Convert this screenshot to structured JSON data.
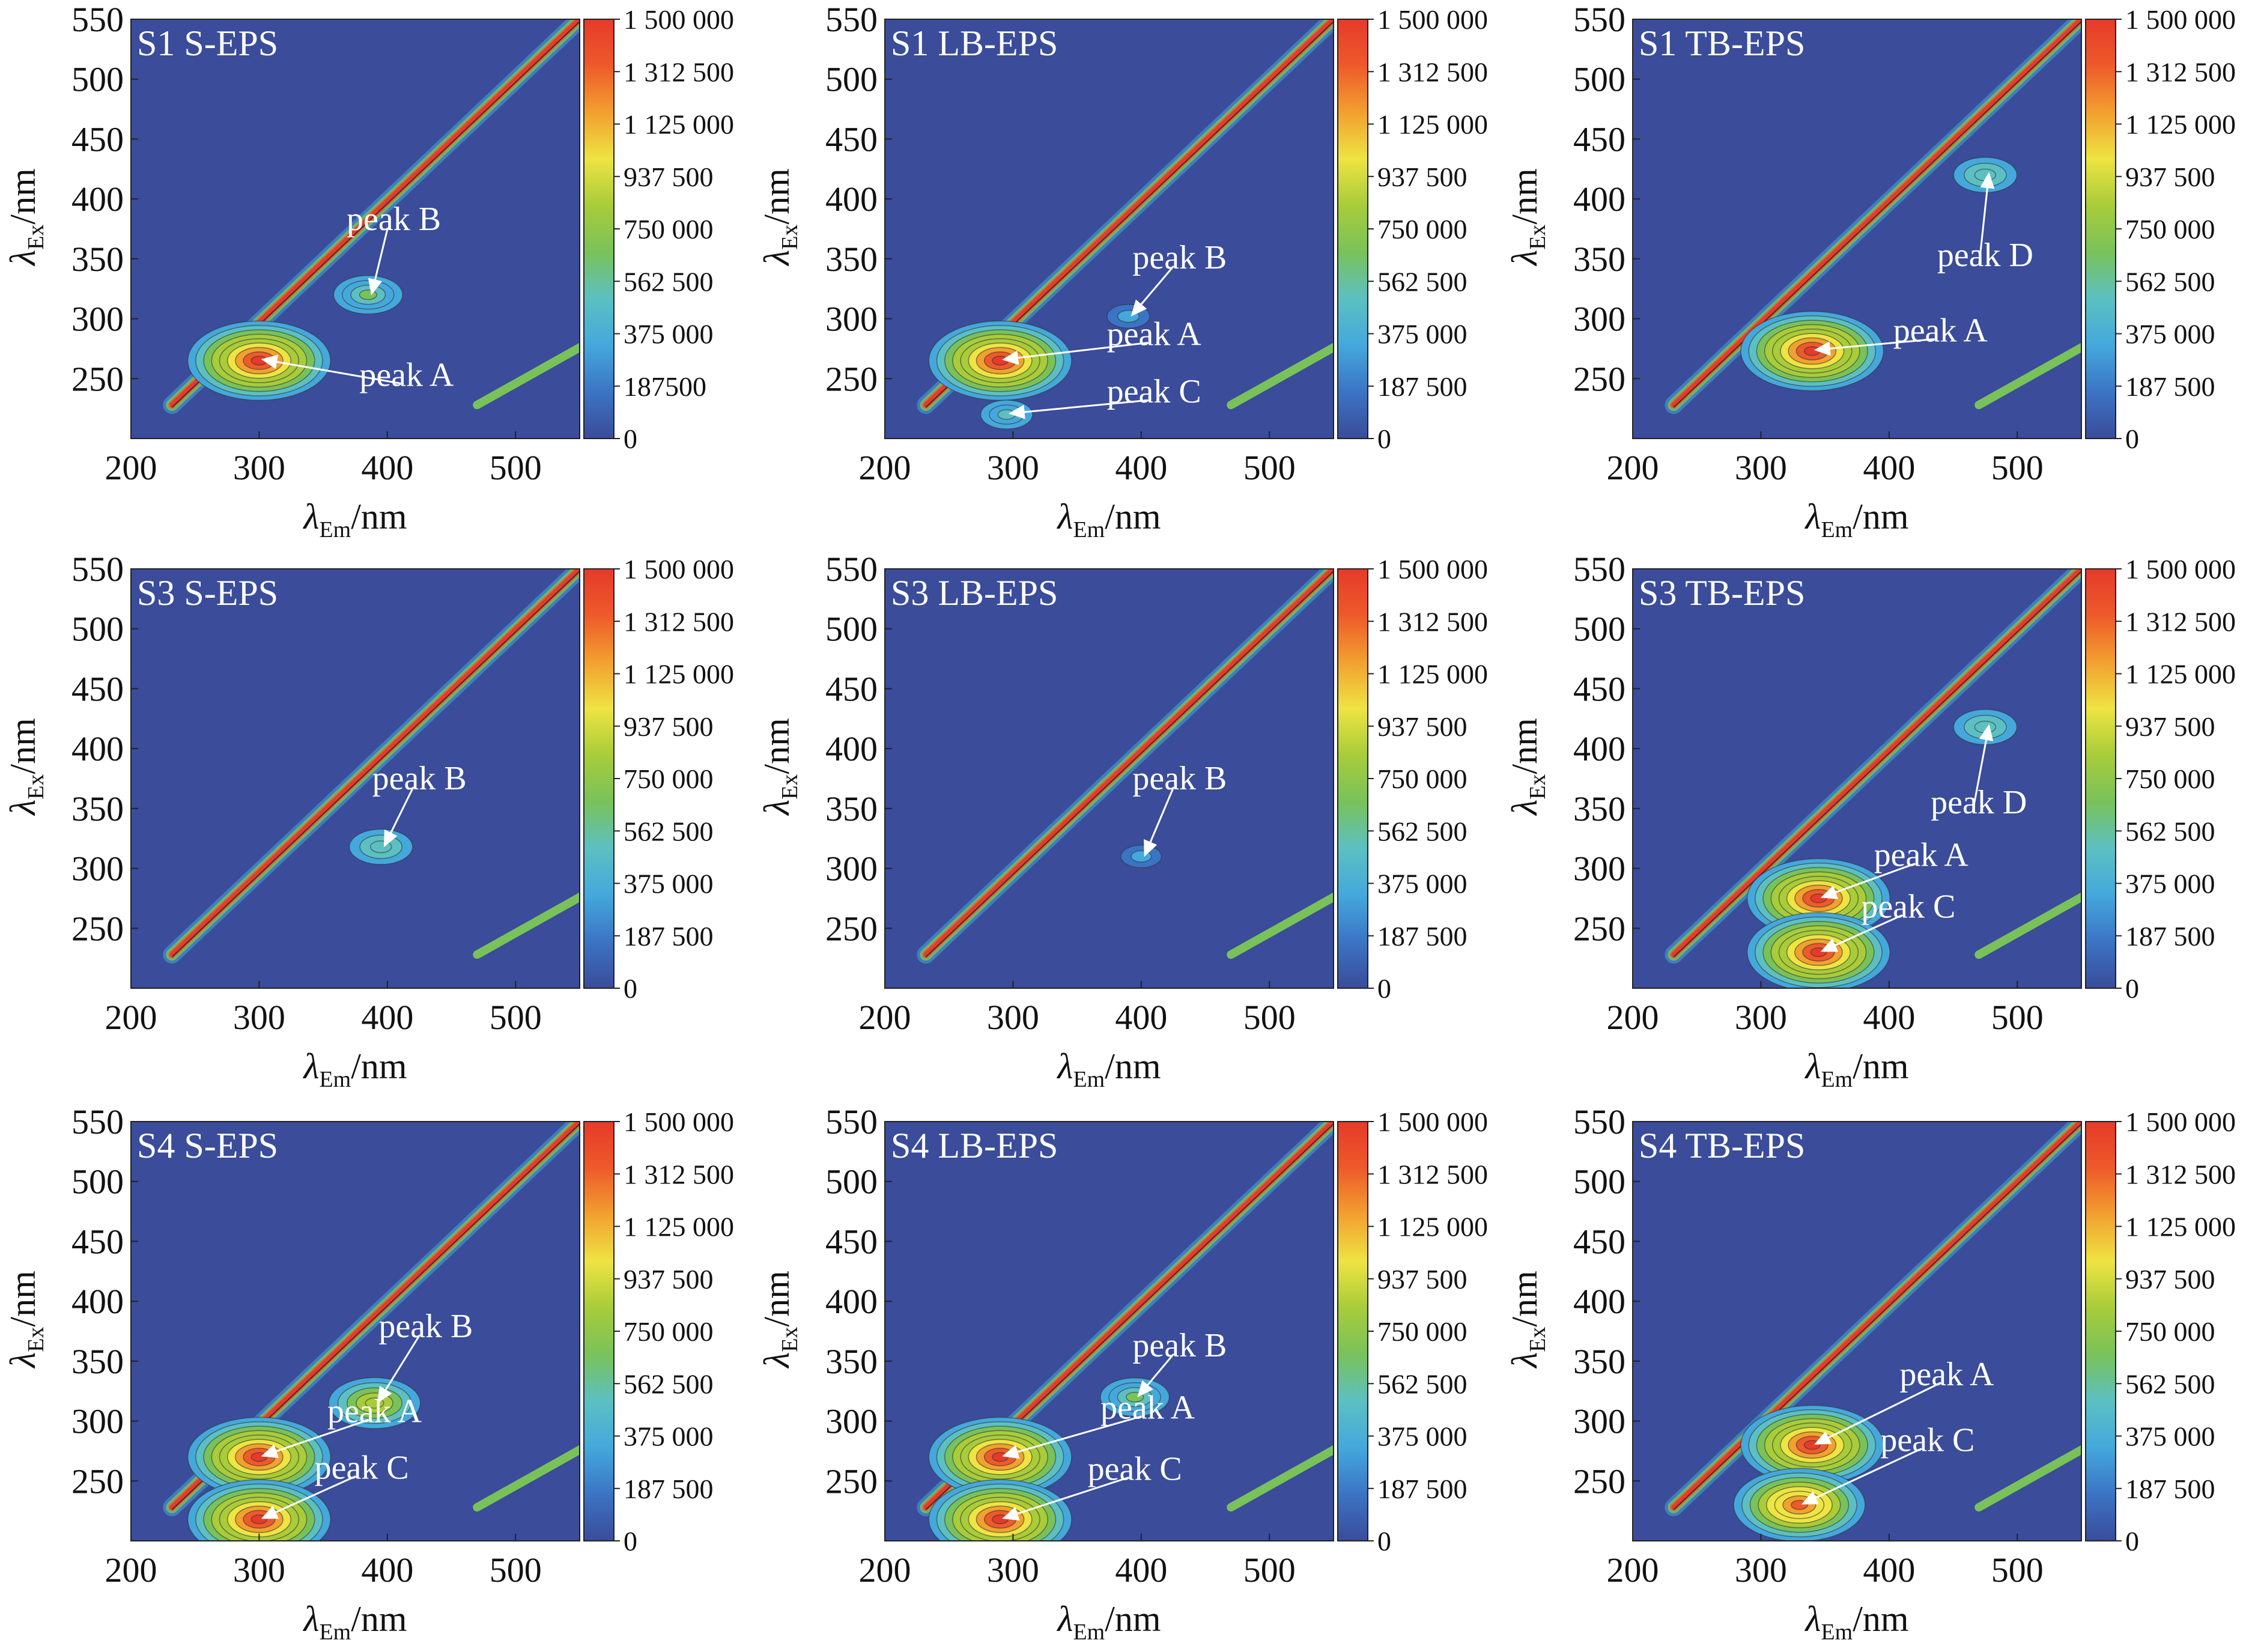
{
  "axes": {
    "xlabel": {
      "symbol": "λ",
      "sub": "Em",
      "unit": "/nm"
    },
    "ylabel": {
      "symbol": "λ",
      "sub": "Ex",
      "unit": "/nm"
    },
    "xticks": [
      "200",
      "300",
      "400",
      "500"
    ],
    "yticks": [
      "550",
      "500",
      "450",
      "400",
      "350",
      "300",
      "250"
    ],
    "xlim": [
      200,
      550
    ],
    "ylim": [
      200,
      550
    ]
  },
  "colors": {
    "c0": "#3a4c9a",
    "c1": "#3b74c4",
    "c2": "#44a8dc",
    "c3": "#5cc0c2",
    "c4": "#79c25a",
    "c5": "#a8cc3a",
    "c6": "#eee442",
    "c7": "#f2a030",
    "c8": "#ee5a2a",
    "c9": "#e63a2a",
    "contour": "#333333",
    "arrow": "#ffffff"
  },
  "chart_data": [
    {
      "type": "heatmap",
      "title": "S1 S-EPS",
      "colorbar": [
        "1 500 000",
        "1 312 500",
        "1 125 000",
        "937 500",
        "750 000",
        "562 500",
        "375 000",
        "187500",
        "0"
      ],
      "peaks": [
        {
          "label": "peak B",
          "em": 385,
          "ex": 320,
          "intensity": 0.35,
          "tx": 405,
          "ty": 380
        },
        {
          "label": "peak A",
          "em": 300,
          "ex": 265,
          "intensity": 1.0,
          "tx": 415,
          "ty": 250
        }
      ]
    },
    {
      "type": "heatmap",
      "title": "S1 LB-EPS",
      "colorbar": [
        "1 500  000",
        "1 312 500",
        "1 125 000",
        "937 500",
        "750 000",
        "562 500",
        "375 000",
        "187 500",
        "0"
      ],
      "peaks": [
        {
          "label": "peak B",
          "em": 390,
          "ex": 302,
          "intensity": 0.12,
          "tx": 430,
          "ty": 348
        },
        {
          "label": "peak A",
          "em": 290,
          "ex": 265,
          "intensity": 1.0,
          "tx": 410,
          "ty": 284
        },
        {
          "label": "peak C",
          "em": 295,
          "ex": 220,
          "intensity": 0.2,
          "tx": 410,
          "ty": 236
        }
      ]
    },
    {
      "type": "heatmap",
      "title": "S1 TB-EPS",
      "colorbar": [
        "1 500 000",
        "1 312 500",
        "1 125 000",
        "937 500",
        "750 000",
        "562 500",
        "375 000",
        "187 500",
        "0"
      ],
      "peaks": [
        {
          "label": "peak D",
          "em": 475,
          "ex": 420,
          "intensity": 0.3,
          "tx": 475,
          "ty": 350
        },
        {
          "label": "peak A",
          "em": 340,
          "ex": 273,
          "intensity": 1.0,
          "tx": 440,
          "ty": 287
        }
      ]
    },
    {
      "type": "heatmap",
      "title": "S3 S-EPS",
      "colorbar": [
        "1 500 000",
        "1 312 500",
        "1 125 000",
        "937 500",
        "750 000",
        "562 500",
        "375 000",
        "187 500",
        "0"
      ],
      "peaks": [
        {
          "label": "peak B",
          "em": 395,
          "ex": 318,
          "intensity": 0.3,
          "tx": 425,
          "ty": 372
        }
      ]
    },
    {
      "type": "heatmap",
      "title": "S3 LB-EPS",
      "colorbar": [
        "1 500 000",
        "1 312 500",
        "1 125 000",
        "937 500",
        "750 000",
        "562 500",
        "375 000",
        "187 500",
        "0"
      ],
      "peaks": [
        {
          "label": "peak B",
          "em": 400,
          "ex": 310,
          "intensity": 0.1,
          "tx": 430,
          "ty": 372
        }
      ]
    },
    {
      "type": "heatmap",
      "title": "S3 TB-EPS",
      "colorbar": [
        "1 500 000",
        "1 312 500",
        "1 125 000",
        "937 500",
        "750 000",
        "562 500",
        "375 000",
        "187 500",
        "0"
      ],
      "peaks": [
        {
          "label": "peak D",
          "em": 475,
          "ex": 418,
          "intensity": 0.3,
          "tx": 470,
          "ty": 352
        },
        {
          "label": "peak A",
          "em": 345,
          "ex": 275,
          "intensity": 1.0,
          "tx": 425,
          "ty": 308
        },
        {
          "label": "peak C",
          "em": 345,
          "ex": 230,
          "intensity": 1.0,
          "tx": 415,
          "ty": 265
        }
      ]
    },
    {
      "type": "heatmap",
      "title": "S4 S-EPS",
      "colorbar": [
        "1 500 000",
        "1 312 500",
        "1 125 000",
        "937 500",
        "750 000",
        "562 500",
        "375 000",
        "187 500",
        "0"
      ],
      "peaks": [
        {
          "label": "peak B",
          "em": 390,
          "ex": 315,
          "intensity": 0.55,
          "tx": 430,
          "ty": 376
        },
        {
          "label": "peak A",
          "em": 300,
          "ex": 270,
          "intensity": 1.0,
          "tx": 390,
          "ty": 305
        },
        {
          "label": "peak C",
          "em": 300,
          "ex": 218,
          "intensity": 1.0,
          "tx": 380,
          "ty": 258
        }
      ]
    },
    {
      "type": "heatmap",
      "title": "S4 LB-EPS",
      "colorbar": [
        "1 500 000",
        "1 312 500",
        "1 125 000",
        "937 500",
        "750 000",
        "562 500",
        "375 000",
        "187 500",
        "0"
      ],
      "peaks": [
        {
          "label": "peak B",
          "em": 395,
          "ex": 320,
          "intensity": 0.35,
          "tx": 430,
          "ty": 360
        },
        {
          "label": "peak A",
          "em": 290,
          "ex": 270,
          "intensity": 1.0,
          "tx": 405,
          "ty": 308
        },
        {
          "label": "peak C",
          "em": 290,
          "ex": 218,
          "intensity": 1.0,
          "tx": 395,
          "ty": 257
        }
      ]
    },
    {
      "type": "heatmap",
      "title": "S4 TB-EPS",
      "colorbar": [
        "1 500 000",
        "1 312 500",
        "1 125 000",
        "937 500",
        "750 000",
        "562 500",
        "375 000",
        "187 500",
        "0"
      ],
      "peaks": [
        {
          "label": "peak A",
          "em": 340,
          "ex": 280,
          "intensity": 1.0,
          "tx": 445,
          "ty": 336
        },
        {
          "label": "peak C",
          "em": 330,
          "ex": 230,
          "intensity": 0.9,
          "tx": 430,
          "ty": 281
        }
      ]
    }
  ]
}
